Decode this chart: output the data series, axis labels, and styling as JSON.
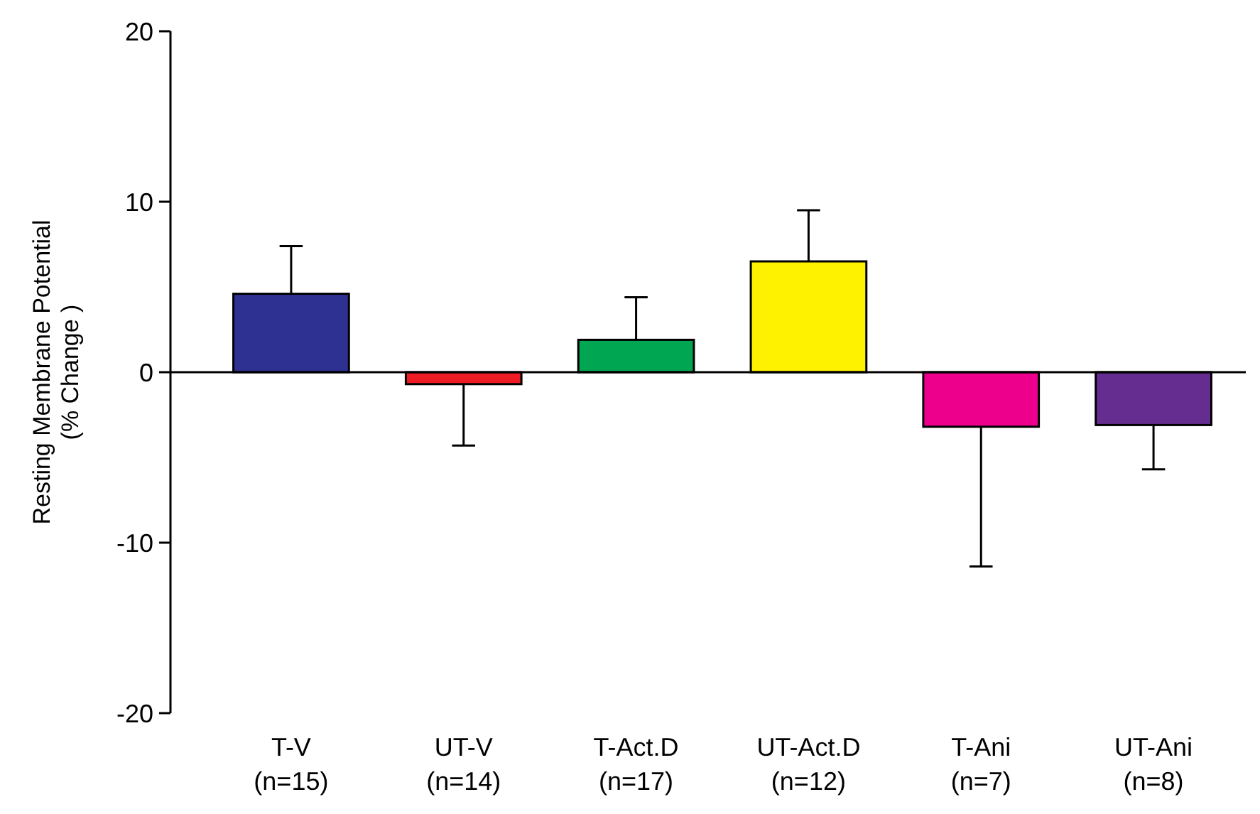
{
  "chart_data": {
    "type": "bar",
    "ylabel": "Resting Membrane Potential\n(% Change )",
    "categories": [
      "T-V\n(n=15)",
      "UT-V\n(n=14)",
      "T-Act.D\n(n=17)",
      "UT-Act.D\n(n=12)",
      "T-Ani\n(n=7)",
      "UT-Ani\n(n=8)"
    ],
    "values": [
      4.6,
      -0.7,
      1.9,
      6.5,
      -3.2,
      -3.1
    ],
    "colors": [
      "#2e3192",
      "#ed1c24",
      "#00a651",
      "#fff200",
      "#ec008c",
      "#662d91"
    ],
    "errors": [
      [
        4.6,
        7.4
      ],
      [
        -4.3,
        -0.7
      ],
      [
        1.9,
        4.4
      ],
      [
        6.5,
        9.5
      ],
      [
        -11.4,
        -3.2
      ],
      [
        -5.7,
        -3.1
      ]
    ],
    "ylim": [
      -20,
      20
    ],
    "yticks": [
      -20,
      -10,
      0,
      10,
      20
    ]
  }
}
